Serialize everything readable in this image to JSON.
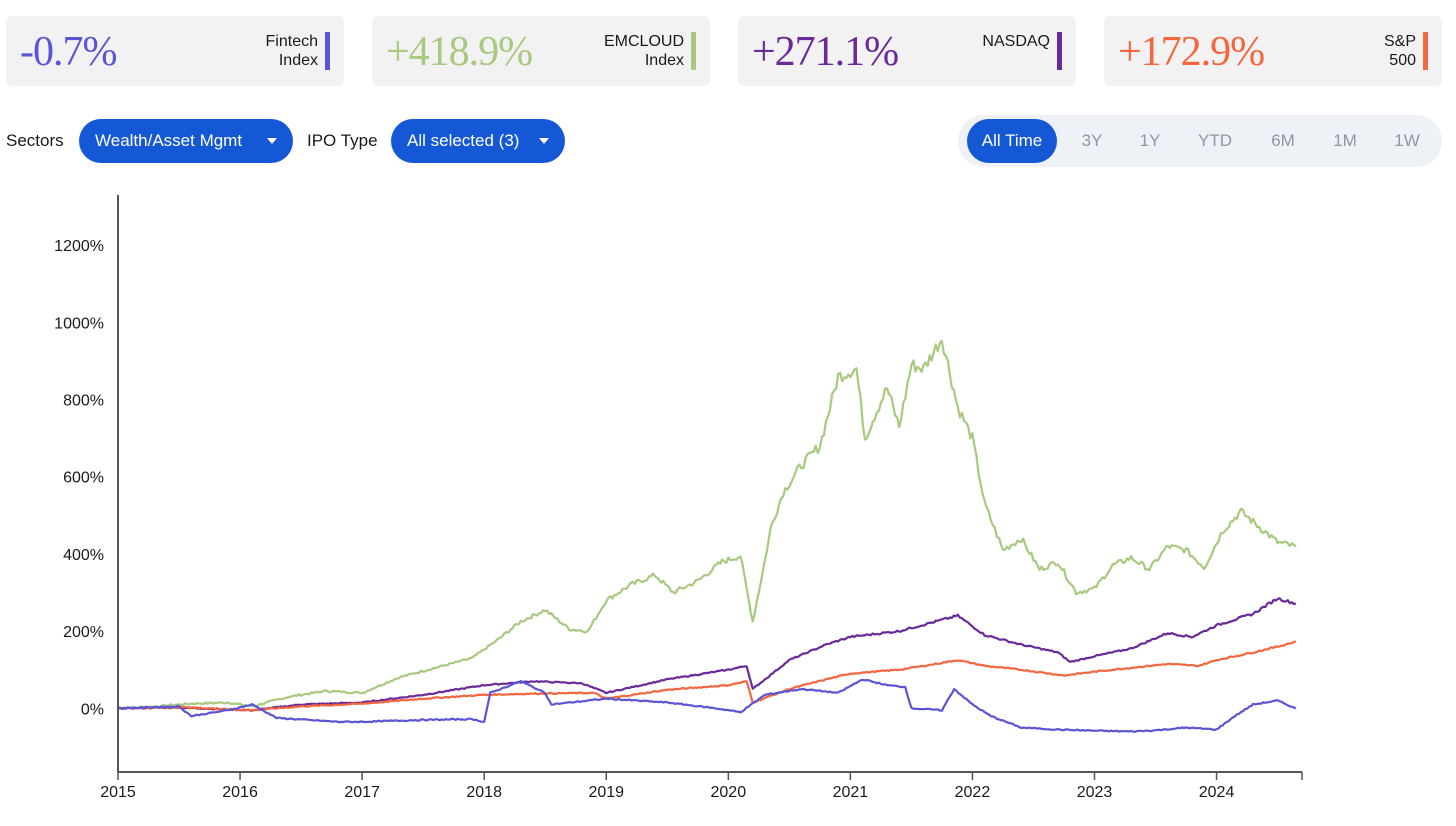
{
  "cards": [
    {
      "value": "-0.7%",
      "label_line1": "Fintech",
      "label_line2": "Index",
      "color": "#5b55d6"
    },
    {
      "value": "+418.9%",
      "label_line1": "EMCLOUD",
      "label_line2": "Index",
      "color": "#a8c97f"
    },
    {
      "value": "+271.1%",
      "label_line1": "NASDAQ",
      "label_line2": "",
      "color": "#6a2a9a"
    },
    {
      "value": "+172.9%",
      "label_line1": "S&P",
      "label_line2": "500",
      "color": "#f4663e"
    }
  ],
  "filters": {
    "sectors_label": "Sectors",
    "sectors_value": "Wealth/Asset Mgmt",
    "ipo_label": "IPO Type",
    "ipo_value": "All selected (3)"
  },
  "ranges": [
    "All Time",
    "3Y",
    "1Y",
    "YTD",
    "6M",
    "1M",
    "1W"
  ],
  "active_range": "All Time",
  "chart_data": {
    "type": "line",
    "title": "",
    "xlabel": "",
    "ylabel": "",
    "x_ticks": [
      "2015",
      "2016",
      "2017",
      "2018",
      "2019",
      "2020",
      "2021",
      "2022",
      "2023",
      "2024"
    ],
    "y_ticks": [
      "0%",
      "200%",
      "400%",
      "600%",
      "800%",
      "1000%",
      "1200%"
    ],
    "xlim": [
      2015.0,
      2024.7
    ],
    "ylim": [
      -165,
      1330
    ],
    "grid": false,
    "series": [
      {
        "name": "EMCLOUD Index",
        "color": "#a8c97f",
        "x": [
          2015.0,
          2015.3,
          2015.6,
          2015.9,
          2016.1,
          2016.4,
          2016.7,
          2017.0,
          2017.3,
          2017.6,
          2017.9,
          2018.1,
          2018.3,
          2018.5,
          2018.7,
          2018.85,
          2019.0,
          2019.2,
          2019.4,
          2019.55,
          2019.75,
          2019.95,
          2020.1,
          2020.2,
          2020.28,
          2020.35,
          2020.45,
          2020.6,
          2020.75,
          2020.9,
          2021.05,
          2021.12,
          2021.2,
          2021.3,
          2021.4,
          2021.5,
          2021.6,
          2021.75,
          2021.88,
          2022.0,
          2022.1,
          2022.25,
          2022.4,
          2022.55,
          2022.7,
          2022.85,
          2023.0,
          2023.15,
          2023.3,
          2023.45,
          2023.6,
          2023.75,
          2023.9,
          2024.05,
          2024.2,
          2024.35,
          2024.5,
          2024.65
        ],
        "y": [
          0,
          5,
          12,
          15,
          5,
          30,
          45,
          40,
          80,
          105,
          130,
          175,
          225,
          255,
          205,
          200,
          280,
          320,
          345,
          300,
          330,
          380,
          395,
          225,
          350,
          470,
          560,
          630,
          680,
          860,
          880,
          700,
          760,
          830,
          730,
          890,
          880,
          960,
          780,
          700,
          530,
          410,
          440,
          360,
          380,
          300,
          310,
          370,
          390,
          360,
          420,
          410,
          365,
          460,
          510,
          470,
          430,
          418.9
        ]
      },
      {
        "name": "NASDAQ",
        "color": "#6a2a9a",
        "x": [
          2015.0,
          2015.5,
          2016.1,
          2016.5,
          2017.0,
          2017.5,
          2018.0,
          2018.4,
          2018.8,
          2019.0,
          2019.5,
          2020.0,
          2020.15,
          2020.2,
          2020.5,
          2020.8,
          2021.0,
          2021.4,
          2021.7,
          2021.88,
          2022.1,
          2022.4,
          2022.7,
          2022.8,
          2023.0,
          2023.3,
          2023.6,
          2023.8,
          2024.0,
          2024.3,
          2024.5,
          2024.65
        ],
        "y": [
          0,
          2,
          -5,
          10,
          15,
          35,
          60,
          70,
          65,
          40,
          75,
          100,
          110,
          50,
          125,
          165,
          185,
          200,
          225,
          240,
          190,
          165,
          145,
          120,
          135,
          155,
          195,
          185,
          215,
          245,
          285,
          271.1
        ]
      },
      {
        "name": "S&P 500",
        "color": "#f4663e",
        "x": [
          2015.0,
          2015.5,
          2016.1,
          2016.5,
          2017.0,
          2017.5,
          2018.0,
          2018.4,
          2018.9,
          2019.0,
          2019.5,
          2020.0,
          2020.15,
          2020.2,
          2020.5,
          2020.8,
          2021.0,
          2021.4,
          2021.7,
          2021.88,
          2022.1,
          2022.4,
          2022.75,
          2023.0,
          2023.3,
          2023.6,
          2023.85,
          2024.0,
          2024.3,
          2024.5,
          2024.65
        ],
        "y": [
          0,
          3,
          -5,
          5,
          12,
          25,
          35,
          38,
          40,
          25,
          48,
          60,
          70,
          15,
          50,
          75,
          90,
          100,
          115,
          125,
          110,
          100,
          85,
          95,
          105,
          115,
          110,
          125,
          145,
          160,
          172.9
        ]
      },
      {
        "name": "Fintech Index",
        "color": "#5b55d6",
        "x": [
          2015.0,
          2015.5,
          2015.6,
          2015.9,
          2016.1,
          2016.3,
          2016.8,
          2017.0,
          2017.5,
          2017.9,
          2018.0,
          2018.05,
          2018.3,
          2018.5,
          2018.55,
          2019.0,
          2019.5,
          2019.9,
          2020.1,
          2020.3,
          2020.6,
          2020.9,
          2021.1,
          2021.3,
          2021.45,
          2021.5,
          2021.75,
          2021.85,
          2022.0,
          2022.15,
          2022.4,
          2022.7,
          2023.0,
          2023.3,
          2023.5,
          2023.75,
          2024.0,
          2024.15,
          2024.3,
          2024.5,
          2024.65
        ],
        "y": [
          0,
          5,
          -20,
          -5,
          10,
          -25,
          -35,
          -35,
          -30,
          -28,
          -35,
          40,
          70,
          40,
          10,
          25,
          15,
          0,
          -10,
          35,
          50,
          40,
          75,
          60,
          55,
          0,
          -5,
          50,
          10,
          -20,
          -50,
          -55,
          -58,
          -60,
          -57,
          -50,
          -55,
          -20,
          10,
          20,
          -0.7
        ]
      }
    ]
  }
}
